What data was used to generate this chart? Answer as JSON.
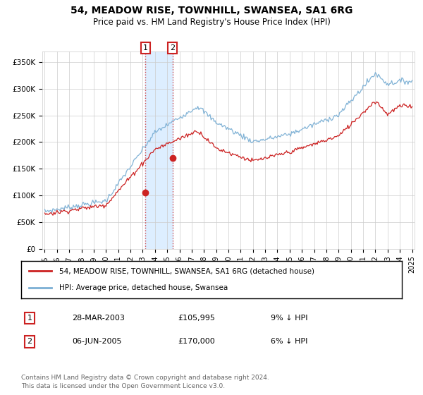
{
  "title": "54, MEADOW RISE, TOWNHILL, SWANSEA, SA1 6RG",
  "subtitle": "Price paid vs. HM Land Registry's House Price Index (HPI)",
  "hpi_color": "#7bafd4",
  "price_color": "#cc2222",
  "marker1_date_label": "28-MAR-2003",
  "marker1_price_label": "£105,995",
  "marker1_hpi_label": "9% ↓ HPI",
  "marker1_year": 2003.23,
  "marker1_price": 105995,
  "marker2_date_label": "06-JUN-2005",
  "marker2_price_label": "£170,000",
  "marker2_hpi_label": "6% ↓ HPI",
  "marker2_year": 2005.43,
  "marker2_price": 170000,
  "legend_label1": "54, MEADOW RISE, TOWNHILL, SWANSEA, SA1 6RG (detached house)",
  "legend_label2": "HPI: Average price, detached house, Swansea",
  "footer": "Contains HM Land Registry data © Crown copyright and database right 2024.\nThis data is licensed under the Open Government Licence v3.0.",
  "ylim": [
    0,
    370000
  ],
  "yticks": [
    0,
    50000,
    100000,
    150000,
    200000,
    250000,
    300000,
    350000
  ],
  "ytick_labels": [
    "£0",
    "£50K",
    "£100K",
    "£150K",
    "£200K",
    "£250K",
    "£300K",
    "£350K"
  ],
  "xlim_start": 1994.8,
  "xlim_end": 2025.2,
  "xticks": [
    1995,
    1996,
    1997,
    1998,
    1999,
    2000,
    2001,
    2002,
    2003,
    2004,
    2005,
    2006,
    2007,
    2008,
    2009,
    2010,
    2011,
    2012,
    2013,
    2014,
    2015,
    2016,
    2017,
    2018,
    2019,
    2020,
    2021,
    2022,
    2023,
    2024,
    2025
  ],
  "background_color": "#ffffff",
  "grid_color": "#cccccc",
  "shade_color": "#ddeeff"
}
